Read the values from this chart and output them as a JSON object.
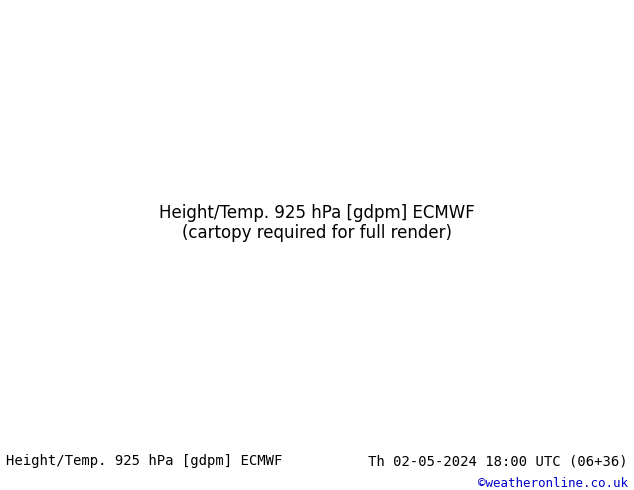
{
  "title_left": "Height/Temp. 925 hPa [gdpm] ECMWF",
  "title_right": "Th 02-05-2024 18:00 UTC (06+36)",
  "credit": "©weatheronline.co.uk",
  "bg_color": "#ffffff",
  "map_bg_color": "#f0f0f0",
  "land_color": "#e8e8e8",
  "water_color": "#c8d8e8",
  "footer_bg": "#ffffff",
  "footer_text_color": "#000000",
  "credit_color": "#0000cc",
  "title_fontsize": 10,
  "credit_fontsize": 9,
  "fig_width": 6.34,
  "fig_height": 4.9,
  "dpi": 100
}
